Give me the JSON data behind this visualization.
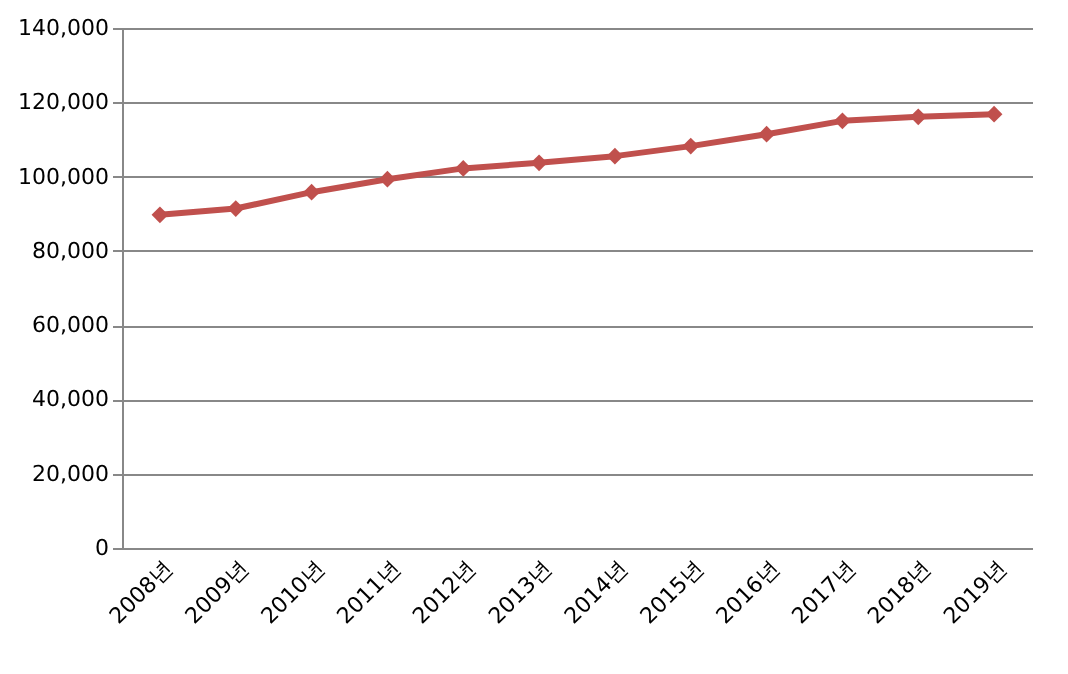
{
  "chart_data": {
    "type": "line",
    "categories": [
      "2008년",
      "2009년",
      "2010년",
      "2011년",
      "2012년",
      "2013년",
      "2014년",
      "2015년",
      "2016년",
      "2017년",
      "2018년",
      "2019년"
    ],
    "series": [
      {
        "color": "#c0504d",
        "values": [
          89700,
          91400,
          95800,
          99300,
          102200,
          103700,
          105500,
          108200,
          111400,
          115000,
          116100,
          116800
        ]
      }
    ],
    "ylim": [
      0,
      140000
    ],
    "yticks": [
      {
        "value": 0,
        "label": "0"
      },
      {
        "value": 20000,
        "label": "20,000"
      },
      {
        "value": 40000,
        "label": "40,000"
      },
      {
        "value": 60000,
        "label": "60,000"
      },
      {
        "value": 80000,
        "label": "80,000"
      },
      {
        "value": 100000,
        "label": "100,000"
      },
      {
        "value": 120000,
        "label": "120,000"
      },
      {
        "value": 140000,
        "label": "140,000"
      }
    ],
    "grid": "y",
    "marker": "diamond",
    "line_style": "solid",
    "legend": false
  }
}
